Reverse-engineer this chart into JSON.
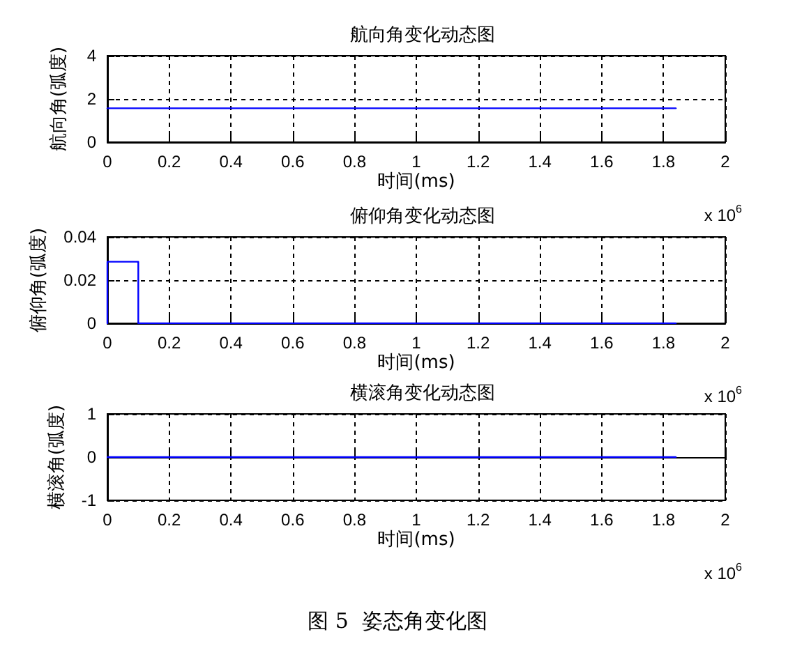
{
  "chart_data": [
    {
      "type": "line",
      "title": "航向角变化动态图",
      "xlabel": "时间(ms)",
      "ylabel": "航向角(弧度)",
      "x": [
        0,
        1.84
      ],
      "series": [
        {
          "color": "#0000ff",
          "values": [
            1.57,
            1.57
          ]
        }
      ],
      "xlim": [
        0,
        2
      ],
      "xticks": [
        0,
        0.2,
        0.4,
        0.6,
        0.8,
        1,
        1.2,
        1.4,
        1.6,
        1.8,
        2
      ],
      "ylim": [
        0,
        4
      ],
      "yticks": [
        0,
        2,
        4
      ],
      "grid": true,
      "annotations": [
        "x 10$^{6}$"
      ]
    },
    {
      "type": "line",
      "title": "俯仰角变化动态图",
      "xlabel": "时间(ms)",
      "ylabel": "俯仰角(弧度)",
      "x": [
        0,
        0,
        0.1,
        0.1,
        1.84
      ],
      "series": [
        {
          "color": "#0000ff",
          "values": [
            0,
            0.0285,
            0.0285,
            0,
            0
          ]
        }
      ],
      "xlim": [
        0,
        2
      ],
      "xticks": [
        0,
        0.2,
        0.4,
        0.6,
        0.8,
        1,
        1.2,
        1.4,
        1.6,
        1.8,
        2
      ],
      "ylim": [
        0,
        0.04
      ],
      "yticks": [
        0,
        0.02,
        0.04
      ],
      "grid": true,
      "annotations": [
        "x 10$^{6}$"
      ]
    },
    {
      "type": "line",
      "title": "横滚角变化动态图",
      "xlabel": "时间(ms)",
      "ylabel": "横滚角(弧度)",
      "x": [
        0,
        1.84
      ],
      "series": [
        {
          "color": "#0000ff",
          "values": [
            0,
            0
          ]
        }
      ],
      "xlim": [
        0,
        2
      ],
      "xticks": [
        0,
        0.2,
        0.4,
        0.6,
        0.8,
        1,
        1.2,
        1.4,
        1.6,
        1.8,
        2
      ],
      "ylim": [
        -1,
        1
      ],
      "yticks": [
        -1,
        0,
        1
      ],
      "grid": true,
      "annotations": [
        "x 10$^{6}$",
        "图 5  姿态角变化图"
      ]
    }
  ]
}
